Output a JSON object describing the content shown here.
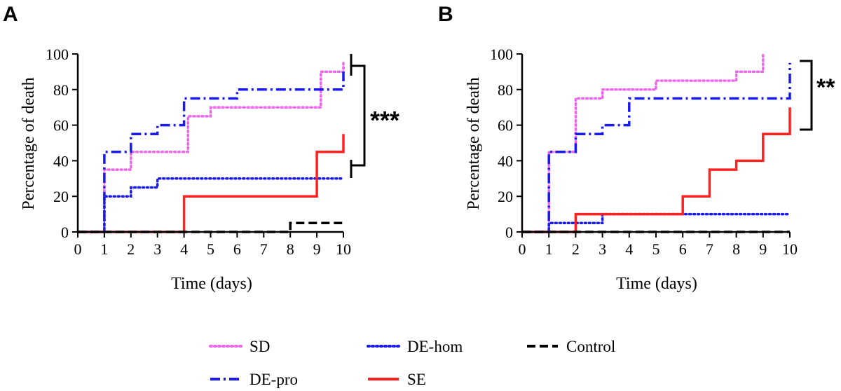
{
  "colors": {
    "SD": "#ee66ee",
    "DE-hom": "#1a1aee",
    "Control": "#000000",
    "DE-pro": "#1a1aee",
    "SE": "#ff2020"
  },
  "legend": {
    "items": [
      {
        "key": "SD",
        "label": "SD"
      },
      {
        "key": "DE-hom",
        "label": "DE-hom"
      },
      {
        "key": "Control",
        "label": "Control"
      },
      {
        "key": "DE-pro",
        "label": "DE-pro"
      },
      {
        "key": "SE",
        "label": "SE"
      }
    ]
  },
  "chart_data": [
    {
      "panel": "A",
      "type": "line",
      "step": true,
      "xlabel": "Time (days)",
      "ylabel": "Percentage of death",
      "xlim": [
        0,
        10
      ],
      "ylim": [
        0,
        100
      ],
      "xticks": [
        0,
        1,
        2,
        3,
        4,
        5,
        6,
        7,
        8,
        9,
        10
      ],
      "yticks": [
        0,
        20,
        40,
        60,
        80,
        100
      ],
      "significance": "***",
      "series": [
        {
          "name": "SD",
          "x": [
            0,
            1,
            1.15,
            2,
            4,
            4.15,
            5,
            9,
            9.15,
            10
          ],
          "y": [
            0,
            35,
            35,
            45,
            45,
            65,
            70,
            70,
            90,
            95
          ]
        },
        {
          "name": "DE-hom",
          "x": [
            0,
            1,
            1.15,
            2,
            2.15,
            3,
            10
          ],
          "y": [
            0,
            20,
            20,
            25,
            25,
            30,
            30
          ]
        },
        {
          "name": "DE-pro",
          "x": [
            0,
            1,
            2,
            3,
            4,
            6,
            10
          ],
          "y": [
            0,
            45,
            55,
            60,
            75,
            80,
            90
          ]
        },
        {
          "name": "SE",
          "x": [
            0,
            4,
            9,
            10
          ],
          "y": [
            0,
            20,
            45,
            55
          ]
        },
        {
          "name": "Control",
          "x": [
            0,
            8,
            10
          ],
          "y": [
            0,
            5,
            5
          ]
        }
      ]
    },
    {
      "panel": "B",
      "type": "line",
      "step": true,
      "xlabel": "Time (days)",
      "ylabel": "Percentage of death",
      "xlim": [
        0,
        10
      ],
      "ylim": [
        0,
        100
      ],
      "xticks": [
        0,
        1,
        2,
        3,
        4,
        5,
        6,
        7,
        8,
        9,
        10
      ],
      "yticks": [
        0,
        20,
        40,
        60,
        80,
        100
      ],
      "significance": "**",
      "series": [
        {
          "name": "SD",
          "x": [
            0,
            1,
            2,
            3,
            5,
            8,
            9
          ],
          "y": [
            0,
            45,
            75,
            80,
            85,
            90,
            100
          ]
        },
        {
          "name": "DE-hom",
          "x": [
            0,
            1,
            3,
            10
          ],
          "y": [
            0,
            5,
            10,
            10
          ]
        },
        {
          "name": "DE-pro",
          "x": [
            0,
            1,
            2,
            3,
            4,
            10
          ],
          "y": [
            0,
            45,
            55,
            60,
            75,
            95
          ]
        },
        {
          "name": "SE",
          "x": [
            0,
            2,
            6,
            7,
            8,
            9,
            10
          ],
          "y": [
            0,
            10,
            20,
            35,
            40,
            55,
            70
          ]
        },
        {
          "name": "Control",
          "x": [
            0,
            10
          ],
          "y": [
            0,
            0
          ]
        }
      ]
    }
  ]
}
